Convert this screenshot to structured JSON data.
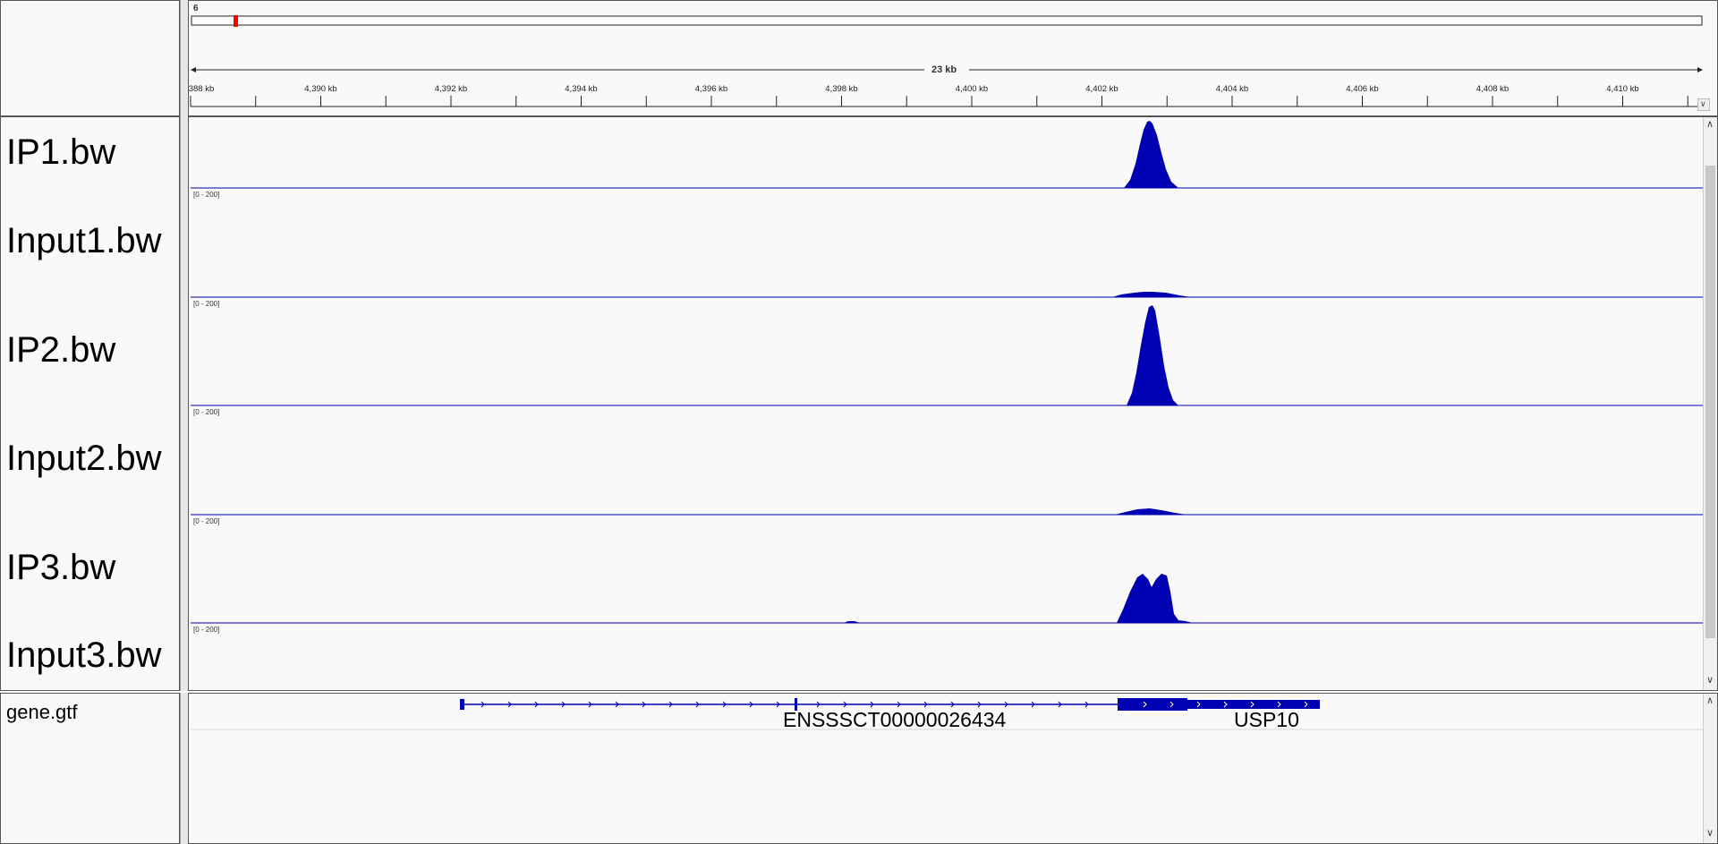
{
  "ideogram": {
    "chromosome": "6"
  },
  "ruler": {
    "span_label": "23 kb",
    "ticks": [
      "388 kb",
      "4,390 kb",
      "4,392 kb",
      "4,394 kb",
      "4,396 kb",
      "4,398 kb",
      "4,400 kb",
      "4,402 kb",
      "4,404 kb",
      "4,406 kb",
      "4,408 kb",
      "4,410 kb"
    ]
  },
  "tracks": [
    {
      "name": "IP1.bw",
      "range": "[0 - 200]"
    },
    {
      "name": "Input1.bw",
      "range": "[0 - 200]"
    },
    {
      "name": "IP2.bw",
      "range": "[0 - 200]"
    },
    {
      "name": "Input2.bw",
      "range": "[0 - 200]"
    },
    {
      "name": "IP3.bw",
      "range": "[0 - 200]"
    },
    {
      "name": "Input3.bw",
      "range": "[0 - 200]"
    }
  ],
  "feature_track": {
    "name": "gene.gtf",
    "genes": [
      {
        "name": "ENSSSCT00000026434"
      },
      {
        "name": "USP10"
      }
    ]
  },
  "colors": {
    "signal": "#0000b3",
    "ideogram_marker": "#ff0000",
    "border": "#555555",
    "background": "#f9f9f9"
  },
  "icons": {
    "scroll_up": "▲",
    "scroll_down": "▼"
  }
}
